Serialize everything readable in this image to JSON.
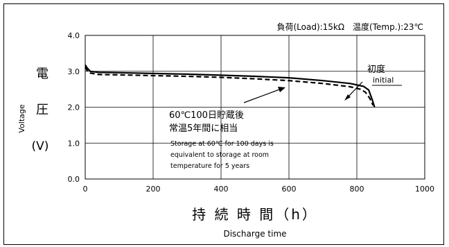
{
  "chart_data": {
    "type": "line",
    "condition": "負荷(Load):15kΩ　温度(Temp.):23℃",
    "ylabel": {
      "ja_chars": [
        "電",
        "圧",
        "(V)"
      ],
      "en": "Voltage"
    },
    "xlabel": {
      "ja": "持 続 時 間（h）",
      "en": "Discharge time"
    },
    "xlim": [
      0,
      1000
    ],
    "ylim": [
      0,
      4.0
    ],
    "x_ticks": [
      0,
      200,
      400,
      600,
      800,
      1000
    ],
    "y_ticks": [
      0,
      1.0,
      2.0,
      3.0,
      4.0
    ],
    "x_tick_labels": [
      "0",
      "200",
      "400",
      "600",
      "800",
      "1000"
    ],
    "y_tick_labels": [
      "0.0",
      "1.0",
      "2.0",
      "3.0",
      "4.0"
    ],
    "grid": true,
    "series": [
      {
        "name": "initial",
        "label_ja": "初度",
        "label_en": "initial",
        "style": "solid",
        "color": "#000000",
        "x": [
          0,
          5,
          15,
          40,
          100,
          200,
          300,
          400,
          500,
          600,
          700,
          780,
          820,
          835,
          845,
          852
        ],
        "y": [
          3.18,
          3.1,
          3.0,
          2.97,
          2.96,
          2.94,
          2.92,
          2.89,
          2.86,
          2.82,
          2.74,
          2.66,
          2.58,
          2.48,
          2.22,
          2.0
        ]
      },
      {
        "name": "stored",
        "label_ja_lines": [
          "60℃100日貯蔵後",
          "常温5年間に相当"
        ],
        "label_en_lines": [
          "Storage at 60℃ for 100 days is",
          "equivalent to storage at room",
          "temperature for 5 years"
        ],
        "style": "dashed",
        "color": "#000000",
        "x": [
          0,
          5,
          15,
          40,
          100,
          200,
          300,
          400,
          500,
          600,
          700,
          780,
          810,
          825,
          838,
          848
        ],
        "y": [
          3.12,
          3.03,
          2.95,
          2.91,
          2.9,
          2.88,
          2.86,
          2.83,
          2.79,
          2.74,
          2.66,
          2.57,
          2.5,
          2.42,
          2.25,
          2.05
        ]
      }
    ]
  }
}
